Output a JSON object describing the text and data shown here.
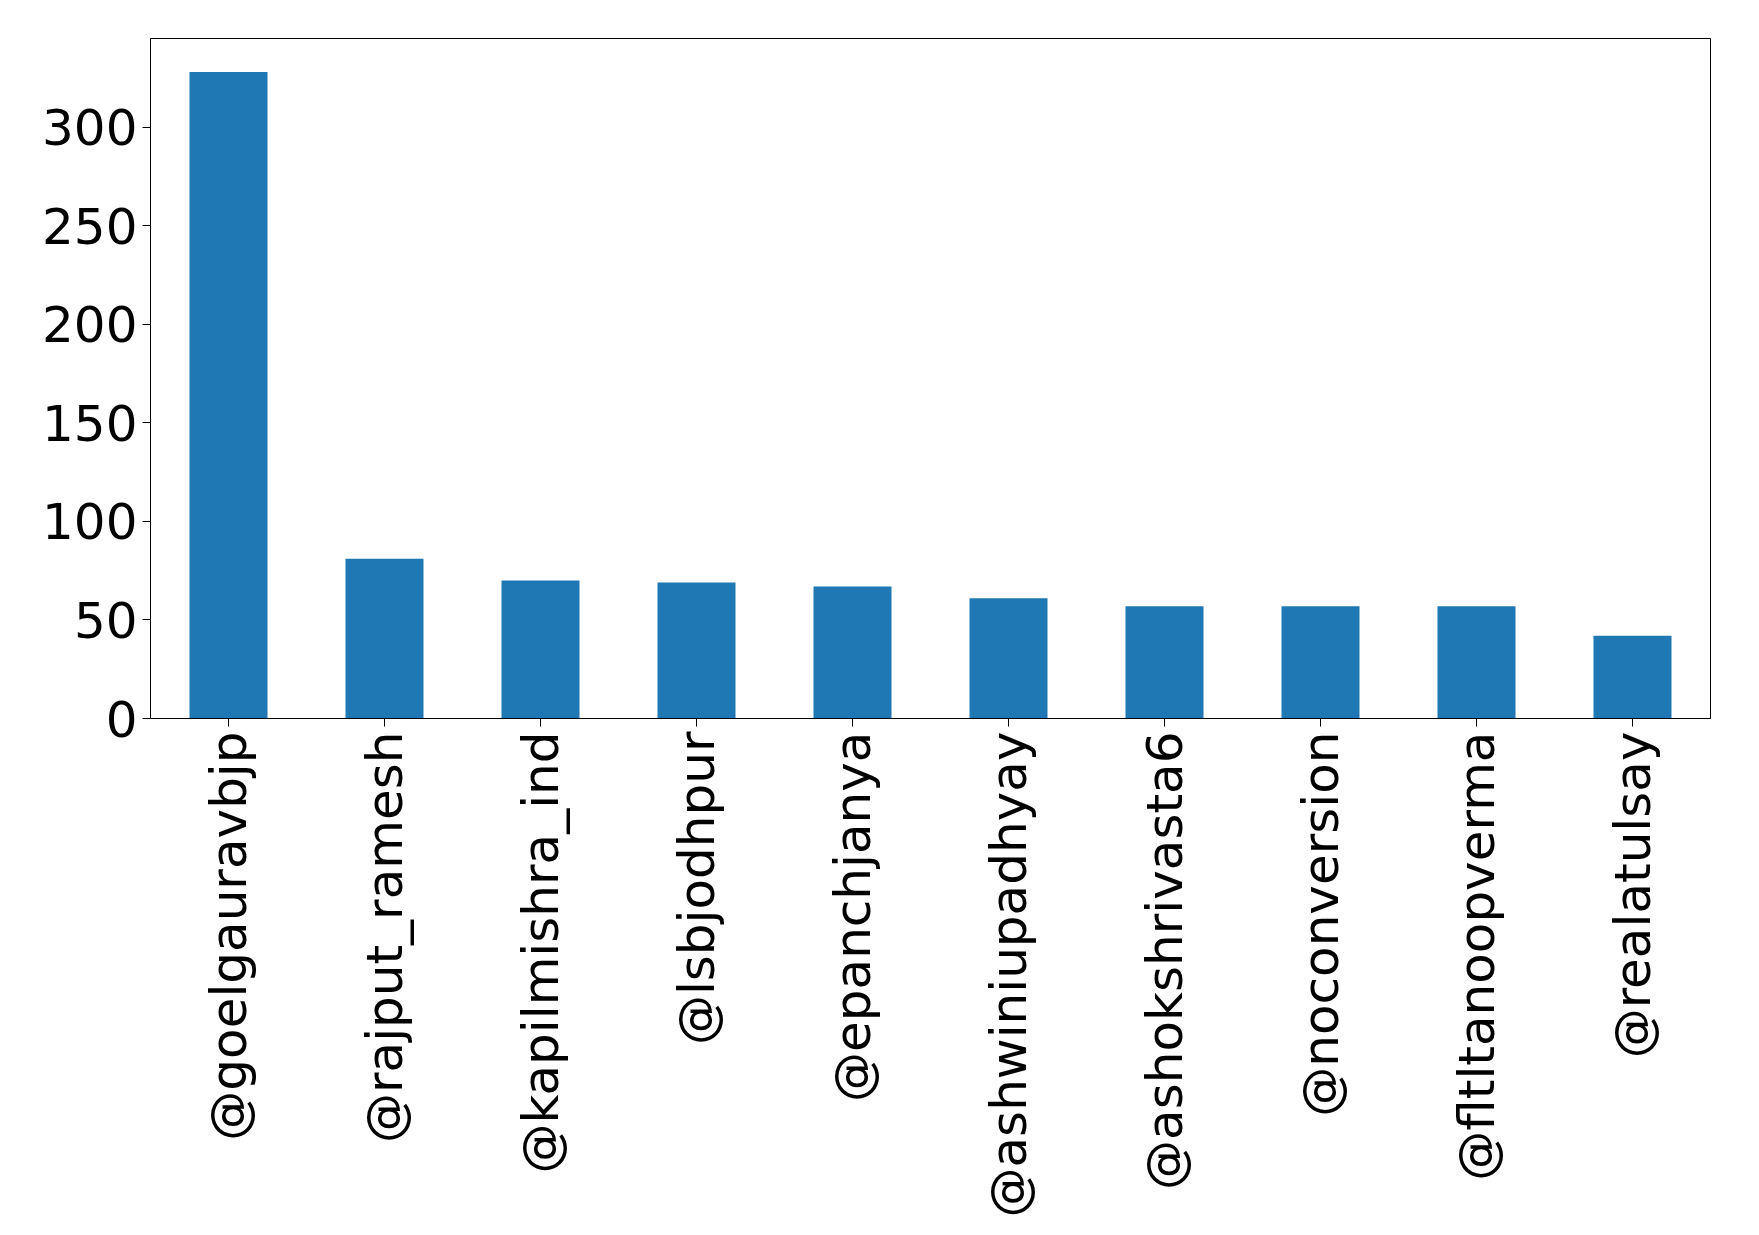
{
  "chart_data": {
    "type": "bar",
    "categories": [
      "@goelgauravbjp",
      "@rajput_ramesh",
      "@kapilmishra_ind",
      "@lsbjodhpur",
      "@epanchjanya",
      "@ashwiniupadhyay",
      "@ashokshrivasta6",
      "@noconversion",
      "@fltltanoopverma",
      "@realatulsay"
    ],
    "values": [
      328,
      81,
      70,
      69,
      67,
      61,
      57,
      57,
      57,
      42
    ],
    "color": "#1f77b4",
    "ylim": [
      0,
      345
    ],
    "yticks": [
      0,
      50,
      100,
      150,
      200,
      250,
      300
    ],
    "grid": false
  }
}
